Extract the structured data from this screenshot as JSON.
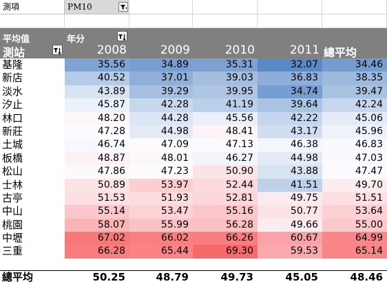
{
  "filter": {
    "label": "測項",
    "value": "PM10",
    "button_icon": "filter-funnel-icon"
  },
  "pivot": {
    "values_label": "平均值",
    "row_field_label": "測站",
    "column_field_label": "年分",
    "years": [
      "2008",
      "2009",
      "2010",
      "2011"
    ],
    "total_label": "總平均",
    "grand_total_label": "總平均"
  },
  "rows": [
    {
      "station": "基隆",
      "values": [
        "35.56",
        "34.89",
        "35.31",
        "32.07"
      ],
      "total": "34.46"
    },
    {
      "station": "新店",
      "values": [
        "40.52",
        "37.01",
        "39.03",
        "36.83"
      ],
      "total": "38.35"
    },
    {
      "station": "淡水",
      "values": [
        "43.89",
        "39.29",
        "39.95",
        "34.74"
      ],
      "total": "39.47"
    },
    {
      "station": "汐止",
      "values": [
        "45.87",
        "42.28",
        "41.19",
        "39.64"
      ],
      "total": "42.24"
    },
    {
      "station": "林口",
      "values": [
        "48.20",
        "44.28",
        "45.56",
        "42.22"
      ],
      "total": "45.06"
    },
    {
      "station": "新莊",
      "values": [
        "47.28",
        "44.98",
        "48.41",
        "43.17"
      ],
      "total": "45.96"
    },
    {
      "station": "土城",
      "values": [
        "46.74",
        "47.09",
        "47.13",
        "46.38"
      ],
      "total": "46.83"
    },
    {
      "station": "板橋",
      "values": [
        "48.87",
        "48.01",
        "46.27",
        "44.98"
      ],
      "total": "47.03"
    },
    {
      "station": "松山",
      "values": [
        "47.86",
        "47.23",
        "50.90",
        "43.88"
      ],
      "total": "47.47"
    },
    {
      "station": "士林",
      "values": [
        "50.89",
        "53.97",
        "52.44",
        "41.51"
      ],
      "total": "49.70"
    },
    {
      "station": "古亭",
      "values": [
        "51.53",
        "51.93",
        "52.81",
        "49.75"
      ],
      "total": "51.51"
    },
    {
      "station": "中山",
      "values": [
        "55.14",
        "53.47",
        "55.16",
        "50.77"
      ],
      "total": "53.64"
    },
    {
      "station": "桃園",
      "values": [
        "58.07",
        "55.99",
        "56.28",
        "49.66"
      ],
      "total": "55.00"
    },
    {
      "station": "中壢",
      "values": [
        "67.02",
        "66.02",
        "66.26",
        "60.67"
      ],
      "total": "64.99"
    },
    {
      "station": "三重",
      "values": [
        "66.28",
        "65.44",
        "69.30",
        "59.53"
      ],
      "total": "65.14"
    }
  ],
  "grand_total": {
    "values": [
      "50.25",
      "48.79",
      "49.73",
      "45.05"
    ],
    "total": "48.46"
  },
  "colors": {
    "header_bg": "#808080",
    "scale_low": "#5a8ac6",
    "scale_mid": "#fcfcff",
    "scale_high": "#f8696b"
  }
}
